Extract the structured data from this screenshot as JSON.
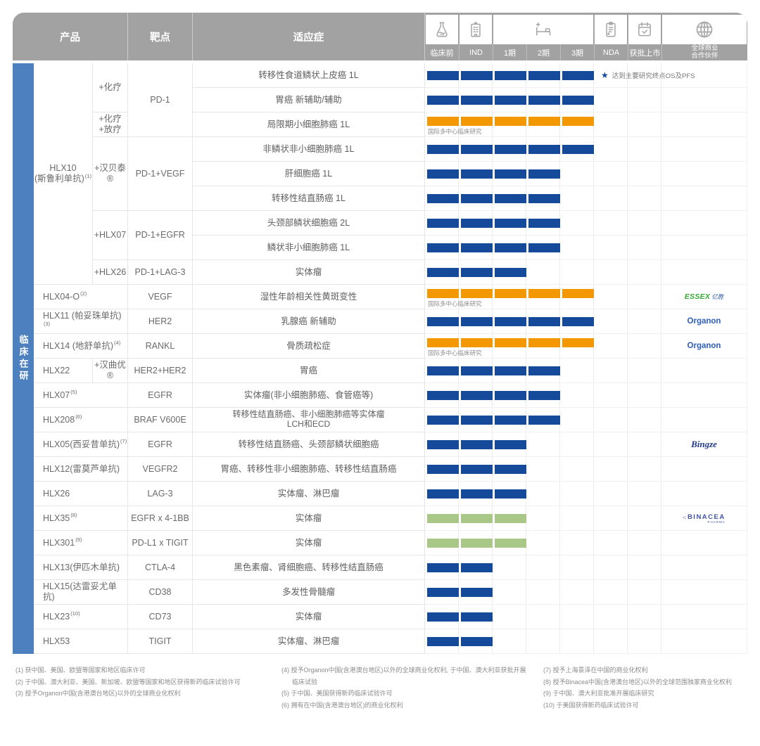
{
  "colors": {
    "header": "#a2a2a2",
    "sidebar": "#4d80bf",
    "bar-blue": "#154a9b",
    "bar-orange": "#f39800",
    "bar-green": "#a9c887",
    "grid-line": "#ececec",
    "organon-blue": "#2e5eb8",
    "essex-green": "#35a936"
  },
  "header": {
    "col_product": "产品",
    "col_target": "靶点",
    "col_indication": "适应症",
    "phase_labels": [
      "临床前",
      "IND",
      "1期",
      "2期",
      "3期",
      "NDA",
      "获批上市"
    ],
    "partner_label_line1": "全球商业",
    "partner_label_line2": "合作伙伴",
    "icons": [
      "flask-icon",
      "hospital-icon",
      "bed-icon",
      "clipboard-icon",
      "calendar-check-icon",
      "globe-icon"
    ]
  },
  "sidebar": {
    "label": "临床在研"
  },
  "table": {
    "product_cells": [
      {
        "row": 1,
        "span": 9,
        "colspan": 1,
        "align": "center",
        "lines": [
          "HLX10",
          "(斯鲁利单抗)"
        ],
        "sup": "(1)"
      },
      {
        "row": 10,
        "span": 1,
        "colspan": 2,
        "lines": [
          "HLX04-O"
        ],
        "sup": "(2)"
      },
      {
        "row": 11,
        "span": 1,
        "colspan": 2,
        "lines": [
          "HLX11 (帕妥珠单抗)"
        ],
        "sup": "(3)"
      },
      {
        "row": 12,
        "span": 1,
        "colspan": 2,
        "lines": [
          "HLX14 (地舒单抗)"
        ],
        "sup": "(4)"
      },
      {
        "row": 13,
        "span": 1,
        "colspan": 1,
        "lines": [
          "HLX22"
        ]
      },
      {
        "row": 14,
        "span": 1,
        "colspan": 2,
        "lines": [
          "HLX07"
        ],
        "sup": "(5)"
      },
      {
        "row": 15,
        "span": 1,
        "colspan": 2,
        "lines": [
          "HLX208"
        ],
        "sup": "(6)"
      },
      {
        "row": 16,
        "span": 1,
        "colspan": 2,
        "lines": [
          "HLX05(西妥昔单抗)"
        ],
        "sup": "(7)"
      },
      {
        "row": 17,
        "span": 1,
        "colspan": 2,
        "lines": [
          "HLX12(雷莫芦单抗)"
        ]
      },
      {
        "row": 18,
        "span": 1,
        "colspan": 2,
        "lines": [
          "HLX26"
        ]
      },
      {
        "row": 19,
        "span": 1,
        "colspan": 2,
        "lines": [
          "HLX35"
        ],
        "sup": "(8)"
      },
      {
        "row": 20,
        "span": 1,
        "colspan": 2,
        "lines": [
          "HLX301"
        ],
        "sup": "(9)"
      },
      {
        "row": 21,
        "span": 1,
        "colspan": 2,
        "lines": [
          "HLX13(伊匹木单抗)"
        ]
      },
      {
        "row": 22,
        "span": 1,
        "colspan": 2,
        "lines": [
          "HLX15(达雷妥尤单抗)"
        ]
      },
      {
        "row": 23,
        "span": 1,
        "colspan": 2,
        "lines": [
          "HLX23"
        ],
        "sup": "(10)"
      },
      {
        "row": 24,
        "span": 1,
        "colspan": 2,
        "lines": [
          "HLX53"
        ]
      }
    ],
    "combo_cells": [
      {
        "row": 1,
        "span": 2,
        "lines": [
          "+化疗"
        ]
      },
      {
        "row": 3,
        "span": 1,
        "lines": [
          "+化疗",
          "+放疗"
        ]
      },
      {
        "row": 4,
        "span": 3,
        "lines": [
          "+汉贝泰®"
        ]
      },
      {
        "row": 7,
        "span": 2,
        "lines": [
          "+HLX07"
        ]
      },
      {
        "row": 9,
        "span": 1,
        "lines": [
          "+HLX26"
        ]
      },
      {
        "row": 13,
        "span": 1,
        "lines": [
          "+汉曲优®"
        ]
      }
    ],
    "target_cells": [
      {
        "row": 1,
        "span": 3,
        "text": "PD-1"
      },
      {
        "row": 4,
        "span": 3,
        "text": "PD-1+VEGF"
      },
      {
        "row": 7,
        "span": 2,
        "text": "PD-1+EGFR"
      },
      {
        "row": 9,
        "span": 1,
        "text": "PD-1+LAG-3"
      },
      {
        "row": 10,
        "span": 1,
        "text": "VEGF"
      },
      {
        "row": 11,
        "span": 1,
        "text": "HER2"
      },
      {
        "row": 12,
        "span": 1,
        "text": "RANKL"
      },
      {
        "row": 13,
        "span": 1,
        "text": "HER2+HER2"
      },
      {
        "row": 14,
        "span": 1,
        "text": "EGFR"
      },
      {
        "row": 15,
        "span": 1,
        "text": "BRAF V600E"
      },
      {
        "row": 16,
        "span": 1,
        "text": "EGFR"
      },
      {
        "row": 17,
        "span": 1,
        "text": "VEGFR2"
      },
      {
        "row": 18,
        "span": 1,
        "text": "LAG-3"
      },
      {
        "row": 19,
        "span": 1,
        "text": "EGFR x 4-1BB"
      },
      {
        "row": 20,
        "span": 1,
        "text": "PD-L1 x TIGIT"
      },
      {
        "row": 21,
        "span": 1,
        "text": "CTLA-4"
      },
      {
        "row": 22,
        "span": 1,
        "text": "CD38"
      },
      {
        "row": 23,
        "span": 1,
        "text": "CD73"
      },
      {
        "row": 24,
        "span": 1,
        "text": "TIGIT"
      }
    ]
  },
  "chart_data": {
    "type": "table",
    "phase_scale": [
      "临床前",
      "IND",
      "1期",
      "2期",
      "3期",
      "NDA",
      "获批上市"
    ],
    "rows": [
      {
        "product": "HLX10 (斯鲁利单抗)",
        "combo": "+化疗",
        "target": "PD-1",
        "indication": "转移性食道鳞状上皮癌 1L",
        "phases_completed": 5,
        "highest_phase": "3期",
        "bar_color": "blue",
        "annotation": "达到主要研究终点OS及PFS"
      },
      {
        "product": "HLX10 (斯鲁利单抗)",
        "combo": "+化疗",
        "target": "PD-1",
        "indication": "胃癌 新辅助/辅助",
        "phases_completed": 5,
        "highest_phase": "3期",
        "bar_color": "blue"
      },
      {
        "product": "HLX10 (斯鲁利单抗)",
        "combo": "+化疗+放疗",
        "target": "PD-1",
        "indication": "局限期小细胞肺癌 1L",
        "phases_completed": 5,
        "highest_phase": "3期",
        "bar_color": "orange",
        "note": "国际多中心临床研究"
      },
      {
        "product": "HLX10 (斯鲁利单抗)",
        "combo": "+汉贝泰®",
        "target": "PD-1+VEGF",
        "indication": "非鳞状非小细胞肺癌 1L",
        "phases_completed": 5,
        "highest_phase": "3期",
        "bar_color": "blue"
      },
      {
        "product": "HLX10 (斯鲁利单抗)",
        "combo": "+汉贝泰®",
        "target": "PD-1+VEGF",
        "indication": "肝细胞癌 1L",
        "phases_completed": 4,
        "highest_phase": "2期",
        "bar_color": "blue"
      },
      {
        "product": "HLX10 (斯鲁利单抗)",
        "combo": "+汉贝泰®",
        "target": "PD-1+VEGF",
        "indication": "转移性结直肠癌 1L",
        "phases_completed": 4,
        "highest_phase": "2期",
        "bar_color": "blue"
      },
      {
        "product": "HLX10 (斯鲁利单抗)",
        "combo": "+HLX07",
        "target": "PD-1+EGFR",
        "indication": "头颈部鳞状细胞癌 2L",
        "phases_completed": 4,
        "highest_phase": "2期",
        "bar_color": "blue"
      },
      {
        "product": "HLX10 (斯鲁利单抗)",
        "combo": "+HLX07",
        "target": "PD-1+EGFR",
        "indication": "鳞状非小细胞肺癌 1L",
        "phases_completed": 4,
        "highest_phase": "2期",
        "bar_color": "blue"
      },
      {
        "product": "HLX10 (斯鲁利单抗)",
        "combo": "+HLX26",
        "target": "PD-1+LAG-3",
        "indication": "实体瘤",
        "phases_completed": 3,
        "highest_phase": "1期",
        "bar_color": "blue"
      },
      {
        "product": "HLX04-O",
        "target": "VEGF",
        "indication": "湿性年龄相关性黄斑变性",
        "phases_completed": 5,
        "highest_phase": "3期",
        "bar_color": "orange",
        "note": "国际多中心临床研究",
        "partner": "essex"
      },
      {
        "product": "HLX11 (帕妥珠单抗)",
        "target": "HER2",
        "indication": "乳腺癌 新辅助",
        "phases_completed": 5,
        "highest_phase": "3期",
        "bar_color": "blue",
        "partner": "organon"
      },
      {
        "product": "HLX14 (地舒单抗)",
        "target": "RANKL",
        "indication": "骨质疏松症",
        "phases_completed": 5,
        "highest_phase": "3期",
        "bar_color": "orange",
        "note": "国际多中心临床研究",
        "partner": "organon"
      },
      {
        "product": "HLX22",
        "combo": "+汉曲优®",
        "target": "HER2+HER2",
        "indication": "胃癌",
        "phases_completed": 4,
        "highest_phase": "2期",
        "bar_color": "blue"
      },
      {
        "product": "HLX07",
        "target": "EGFR",
        "indication": "实体瘤(非小细胞肺癌、食管癌等)",
        "phases_completed": 4,
        "highest_phase": "2期",
        "bar_color": "blue"
      },
      {
        "product": "HLX208",
        "target": "BRAF V600E",
        "indication": "转移性结直肠癌、非小细胞肺癌等实体瘤",
        "indication_line2": "LCH和ECD",
        "phases_completed": 4,
        "highest_phase": "2期",
        "bar_color": "blue"
      },
      {
        "product": "HLX05(西妥昔单抗)",
        "target": "EGFR",
        "indication": "转移性结直肠癌、头颈部鳞状细胞癌",
        "phases_completed": 3,
        "highest_phase": "1期",
        "bar_color": "blue",
        "partner": "bingze"
      },
      {
        "product": "HLX12(雷莫芦单抗)",
        "target": "VEGFR2",
        "indication": "胃癌、转移性非小细胞肺癌、转移性结直肠癌",
        "phases_completed": 3,
        "highest_phase": "1期",
        "bar_color": "blue"
      },
      {
        "product": "HLX26",
        "target": "LAG-3",
        "indication": "实体瘤、淋巴瘤",
        "phases_completed": 3,
        "highest_phase": "1期",
        "bar_color": "blue"
      },
      {
        "product": "HLX35",
        "target": "EGFR x 4-1BB",
        "indication": "实体瘤",
        "phases_completed": 3,
        "highest_phase": "1期",
        "bar_color": "green",
        "partner": "binacea"
      },
      {
        "product": "HLX301",
        "target": "PD-L1 x TIGIT",
        "indication": "实体瘤",
        "phases_completed": 3,
        "highest_phase": "1期",
        "bar_color": "green"
      },
      {
        "product": "HLX13(伊匹木单抗)",
        "target": "CTLA-4",
        "indication": "黑色素瘤、肾细胞癌、转移性结直肠癌",
        "phases_completed": 2,
        "highest_phase": "IND",
        "bar_color": "blue"
      },
      {
        "product": "HLX15(达雷妥尤单抗)",
        "target": "CD38",
        "indication": "多发性骨髓瘤",
        "phases_completed": 2,
        "highest_phase": "IND",
        "bar_color": "blue"
      },
      {
        "product": "HLX23",
        "target": "CD73",
        "indication": "实体瘤",
        "phases_completed": 2,
        "highest_phase": "IND",
        "bar_color": "blue"
      },
      {
        "product": "HLX53",
        "target": "TIGIT",
        "indication": "实体瘤、淋巴瘤",
        "phases_completed": 2,
        "highest_phase": "IND",
        "bar_color": "blue"
      }
    ]
  },
  "partners": {
    "essex": {
      "name": "ESSEX",
      "cn": "亿胜"
    },
    "organon": {
      "name": "Organon"
    },
    "bingze": {
      "name": "Bingze"
    },
    "binacea": {
      "name": "BINACEA",
      "sub": "PHARMA",
      "mark": "-:"
    }
  },
  "footnotes": {
    "columns": [
      [
        "(1) 获中国、美国、欧盟等国家和地区临床许可",
        "(2) 于中国、澳大利亚、美国、新加坡、欧盟等国家和地区获得新药临床试验许可",
        "(3) 授予Organon中国(含港澳台地区)以外的全球商业化权利"
      ],
      [
        "(4) 授予Organon中国(含港澳台地区)以外的全球商业化权利, 于中国、澳大利亚获批开展临床试验",
        "(5) 于中国、美国获得新药临床试验许可",
        "(6) 拥有在中国(含港澳台地区)的商业化权利"
      ],
      [
        "(7) 授予上海景泽在中国的商业化权利",
        "(8) 授予Binacea中国(含港澳台地区)以外的全球范围独家商业化权利",
        "(9) 于中国、澳大利亚批准开展临床研究",
        "(10) 于美国获得新药临床试验许可"
      ]
    ]
  }
}
